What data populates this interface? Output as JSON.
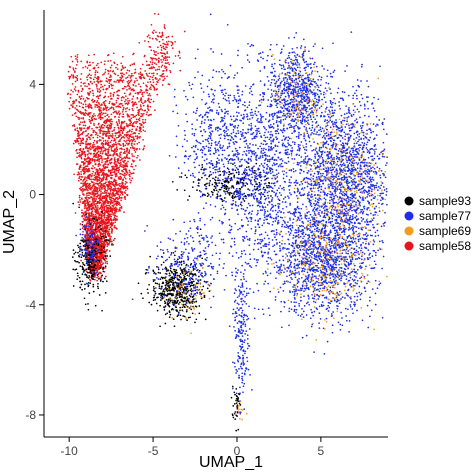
{
  "chart_data": {
    "type": "scatter",
    "xlabel": "UMAP_1",
    "ylabel": "UMAP_2",
    "xlim": [
      -11.5,
      9.0
    ],
    "ylim": [
      -8.8,
      6.7
    ],
    "xticks": [
      -10,
      -5,
      0,
      5
    ],
    "yticks": [
      -8,
      -4,
      0,
      4
    ],
    "grid": false,
    "legend_position": "right",
    "series": [
      {
        "name": "sample93",
        "color": "#000000"
      },
      {
        "name": "sample77",
        "color": "#1f2fe8"
      },
      {
        "name": "sample69",
        "color": "#f39c1a"
      },
      {
        "name": "sample58",
        "color": "#e8141c"
      }
    ],
    "clusters": [
      {
        "series": "sample58",
        "shape": "fan",
        "n": 3600,
        "xrange": [
          -10.3,
          -4.2
        ],
        "yrange": [
          -2.8,
          5.2
        ]
      },
      {
        "series": "sample58",
        "center": [
          -4.6,
          5.2
        ],
        "sd": [
          0.45,
          0.6
        ],
        "n": 140
      },
      {
        "series": "sample93",
        "center": [
          -8.7,
          -2.4
        ],
        "sd": [
          0.45,
          0.65
        ],
        "n": 260
      },
      {
        "series": "sample93",
        "center": [
          -3.6,
          -3.4
        ],
        "sd": [
          0.75,
          0.5
        ],
        "n": 520
      },
      {
        "series": "sample93",
        "center": [
          -0.3,
          0.4
        ],
        "sd": [
          1.2,
          0.35
        ],
        "n": 230
      },
      {
        "series": "sample93",
        "center": [
          0.0,
          -7.6
        ],
        "sd": [
          0.15,
          0.4
        ],
        "n": 40
      },
      {
        "series": "sample77",
        "center": [
          3.5,
          3.7
        ],
        "sd": [
          0.8,
          0.8
        ],
        "n": 650
      },
      {
        "series": "sample77",
        "center": [
          6.3,
          0.7
        ],
        "sd": [
          1.4,
          1.45
        ],
        "n": 1700
      },
      {
        "series": "sample77",
        "center": [
          5.1,
          -2.4
        ],
        "sd": [
          1.5,
          1.0
        ],
        "n": 1300
      },
      {
        "series": "sample77",
        "center": [
          1.5,
          0.8
        ],
        "sd": [
          1.3,
          1.8
        ],
        "n": 1000
      },
      {
        "series": "sample77",
        "center": [
          -1.3,
          2.2
        ],
        "sd": [
          1.0,
          1.2
        ],
        "n": 420
      },
      {
        "series": "sample77",
        "center": [
          0.3,
          -5.0
        ],
        "sd": [
          0.25,
          1.2
        ],
        "n": 200
      },
      {
        "series": "sample77",
        "center": [
          -2.9,
          -2.6
        ],
        "sd": [
          1.0,
          0.8
        ],
        "n": 260
      },
      {
        "series": "sample77",
        "center": [
          -8.8,
          -1.8
        ],
        "sd": [
          0.3,
          0.6
        ],
        "n": 90
      },
      {
        "series": "sample69",
        "center": [
          6.2,
          0.4
        ],
        "sd": [
          1.4,
          1.4
        ],
        "n": 330
      },
      {
        "series": "sample69",
        "center": [
          5.0,
          -2.6
        ],
        "sd": [
          1.4,
          0.9
        ],
        "n": 220
      },
      {
        "series": "sample69",
        "center": [
          3.6,
          3.6
        ],
        "sd": [
          0.7,
          0.7
        ],
        "n": 110
      },
      {
        "series": "sample69",
        "center": [
          -2.8,
          -3.5
        ],
        "sd": [
          0.7,
          0.5
        ],
        "n": 60
      },
      {
        "series": "sample69",
        "center": [
          0.2,
          -7.9
        ],
        "sd": [
          0.15,
          0.2
        ],
        "n": 12
      }
    ]
  }
}
